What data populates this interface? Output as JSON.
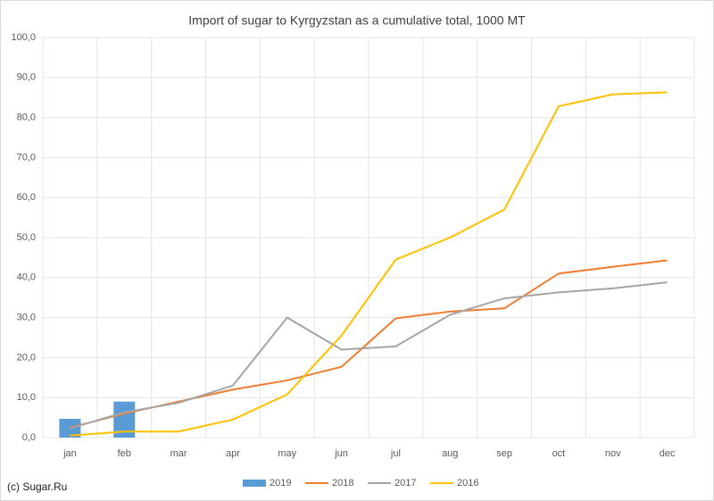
{
  "chart_data": {
    "type": "bar-line",
    "title": "Import of sugar to Kyrgyzstan as a cumulative total, 1000 MT",
    "source": "(c) Sugar.Ru",
    "categories": [
      "jan",
      "feb",
      "mar",
      "apr",
      "may",
      "jun",
      "jul",
      "aug",
      "sep",
      "oct",
      "nov",
      "dec"
    ],
    "series": [
      {
        "name": "2019",
        "kind": "bar",
        "color": "#5b9bd5",
        "values": [
          4.7,
          9.0,
          null,
          null,
          null,
          null,
          null,
          null,
          null,
          null,
          null,
          null
        ]
      },
      {
        "name": "2018",
        "kind": "line",
        "color": "#ed7d31",
        "values": [
          2.5,
          6.0,
          9.0,
          12.0,
          14.3,
          17.7,
          29.8,
          31.5,
          32.3,
          41.0,
          42.7,
          44.3
        ]
      },
      {
        "name": "2017",
        "kind": "line",
        "color": "#a5a5a5",
        "values": [
          2.3,
          6.3,
          8.7,
          13.0,
          30.0,
          22.0,
          22.8,
          30.7,
          34.8,
          36.3,
          37.3,
          38.8
        ]
      },
      {
        "name": "2016",
        "kind": "line",
        "color": "#ffc000",
        "values": [
          0.5,
          1.5,
          1.5,
          4.5,
          10.8,
          25.5,
          44.5,
          50.0,
          57.0,
          82.8,
          85.8,
          86.3
        ]
      }
    ],
    "ylim": [
      0,
      100
    ],
    "yticks": [
      {
        "value": 0,
        "label": "0,0"
      },
      {
        "value": 10,
        "label": "10,0"
      },
      {
        "value": 20,
        "label": "20,0"
      },
      {
        "value": 30,
        "label": "30,0"
      },
      {
        "value": 40,
        "label": "40,0"
      },
      {
        "value": 50,
        "label": "50,0"
      },
      {
        "value": 60,
        "label": "60,0"
      },
      {
        "value": 70,
        "label": "70,0"
      },
      {
        "value": 80,
        "label": "80,0"
      },
      {
        "value": 90,
        "label": "90,0"
      },
      {
        "value": 100,
        "label": "100,0"
      }
    ],
    "grid": true,
    "legend": "bottom"
  }
}
